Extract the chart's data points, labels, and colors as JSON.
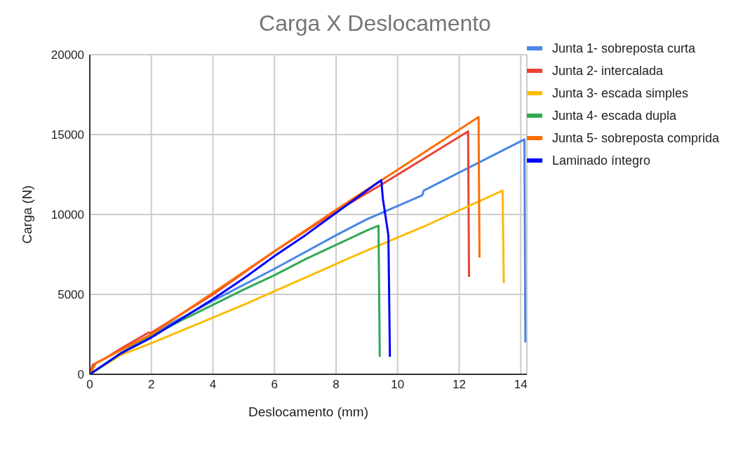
{
  "chart_data": {
    "type": "line",
    "title": "Carga X Deslocamento",
    "xlabel": "Deslocamento (mm)",
    "ylabel": "Carga (N)",
    "xlim": [
      0,
      14.2
    ],
    "xticks": [
      0,
      2,
      4,
      6,
      8,
      10,
      12,
      14
    ],
    "ylim": [
      0,
      20000
    ],
    "yticks": [
      0,
      5000,
      10000,
      15000,
      20000
    ],
    "grid": true,
    "legend": "right",
    "marker": "none",
    "line_style": "solid",
    "series": [
      {
        "name": "Junta 1- sobreposta curta",
        "color": "#4a86e8",
        "x": [
          0,
          1,
          2,
          4,
          6,
          8,
          9,
          10.8,
          10.85,
          14.12,
          14.15
        ],
        "values": [
          0,
          1300,
          2500,
          4600,
          6600,
          8700,
          9700,
          11200,
          11500,
          14700,
          2000
        ]
      },
      {
        "name": "Junta 2- intercalada",
        "color": "#ea4335",
        "x": [
          0,
          0.1,
          0.5,
          1,
          1.9,
          2,
          4,
          6,
          8,
          9.5,
          12.29,
          12.32
        ],
        "values": [
          0,
          600,
          1000,
          1600,
          2600,
          2600,
          5000,
          7700,
          10200,
          11900,
          15200,
          6100
        ]
      },
      {
        "name": "Junta 3- escada simples",
        "color": "#fbbc04",
        "x": [
          0,
          1,
          2,
          3,
          4,
          5,
          6,
          7,
          8,
          9,
          10.8,
          13.41,
          13.45
        ],
        "values": [
          0,
          1200,
          1950,
          2750,
          3550,
          4350,
          5200,
          6050,
          6900,
          7750,
          9200,
          11500,
          5700
        ]
      },
      {
        "name": "Junta 4- escada dupla",
        "color": "#34a853",
        "x": [
          0,
          1,
          2,
          3,
          4,
          5,
          6,
          7,
          8,
          9,
          9.38,
          9.42
        ],
        "values": [
          0,
          1300,
          2400,
          3400,
          4350,
          5300,
          6200,
          7200,
          8100,
          9000,
          9300,
          1100
        ]
      },
      {
        "name": "Junta 5- sobreposta comprida",
        "color": "#ff6d01",
        "x": [
          0,
          0.2,
          1,
          2,
          4,
          6,
          8,
          10,
          10.8,
          12.63,
          12.66
        ],
        "values": [
          0,
          700,
          1500,
          2500,
          5100,
          7700,
          10300,
          12800,
          13800,
          16100,
          7300
        ]
      },
      {
        "name": "Laminado íntegro",
        "color": "#0000ff",
        "x": [
          0,
          1,
          2,
          3,
          4,
          5,
          6,
          7,
          8,
          9,
          9.47,
          9.52,
          9.7,
          9.75
        ],
        "values": [
          0,
          1300,
          2300,
          3500,
          4700,
          6000,
          7400,
          8700,
          10100,
          11500,
          12150,
          11000,
          8700,
          1100
        ]
      }
    ]
  }
}
